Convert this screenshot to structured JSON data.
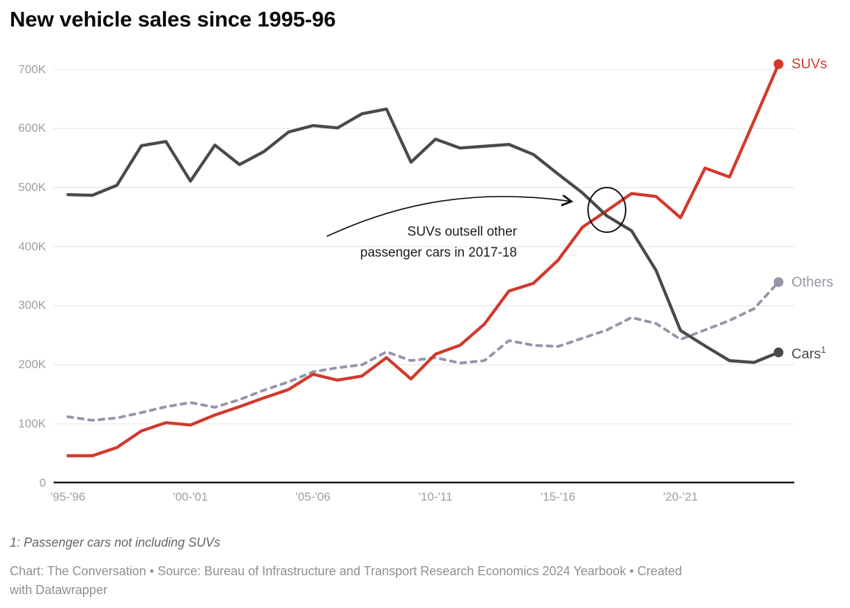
{
  "title": "New vehicle sales since 1995-96",
  "footnote": "1: Passenger cars not including SUVs",
  "credit_line1": "Chart: The Conversation • Source: Bureau of Infrastructure and Transport Research Economics 2024 Yearbook • Created",
  "credit_line2": "with Datawrapper",
  "annotation": {
    "line1": "SUVs outsell other",
    "line2": "passenger cars in 2017-18",
    "circled_event": "SUV line crosses above Cars line at 2017-18"
  },
  "colors": {
    "suvs": "#d2392c",
    "cars": "#4a4a4a",
    "others": "#9795a7",
    "grid": "#e8e8e8",
    "axis_baseline": "#171717",
    "axis_text": "#9e9e9e",
    "annotation_ink": "#111111",
    "title_text": "#0a0a0a"
  },
  "chart_data": {
    "type": "line",
    "title": "New vehicle sales since 1995-96",
    "xlabel": "",
    "ylabel": "",
    "y_unit": "vehicles (thousands)",
    "ylim_k": [
      0,
      700
    ],
    "grid": "horizontal",
    "legend_position": "line-end-labels",
    "years": [
      "1995-96",
      "1996-97",
      "1997-98",
      "1998-99",
      "1999-00",
      "2000-01",
      "2001-02",
      "2002-03",
      "2003-04",
      "2004-05",
      "2005-06",
      "2006-07",
      "2007-08",
      "2008-09",
      "2009-10",
      "2010-11",
      "2011-12",
      "2012-13",
      "2013-14",
      "2014-15",
      "2015-16",
      "2016-17",
      "2017-18",
      "2018-19",
      "2019-20",
      "2020-21",
      "2021-22",
      "2022-23",
      "2023-24",
      "2024-25"
    ],
    "y_ticks": [
      {
        "label": "700K",
        "value_k": 700
      },
      {
        "label": "600K",
        "value_k": 600
      },
      {
        "label": "500K",
        "value_k": 500
      },
      {
        "label": "400K",
        "value_k": 400
      },
      {
        "label": "300K",
        "value_k": 300
      },
      {
        "label": "200K",
        "value_k": 200
      },
      {
        "label": "100K",
        "value_k": 100
      },
      {
        "label": "0",
        "value_k": 0
      }
    ],
    "x_ticks": [
      {
        "label": "'95-'96",
        "index": 0
      },
      {
        "label": "'00-'01",
        "index": 5
      },
      {
        "label": "'05-'06",
        "index": 10
      },
      {
        "label": "'10-'11",
        "index": 15
      },
      {
        "label": "'15-'16",
        "index": 20
      },
      {
        "label": "'20-'21",
        "index": 25
      }
    ],
    "series": [
      {
        "name": "others",
        "end_label": "Others",
        "style": "dashed",
        "color": "#9795a7",
        "values_k": [
          112,
          106,
          110,
          119,
          129,
          136,
          128,
          141,
          157,
          171,
          188,
          195,
          200,
          222,
          207,
          212,
          203,
          207,
          241,
          233,
          231,
          245,
          259,
          280,
          270,
          243,
          259,
          275,
          295,
          340
        ]
      },
      {
        "name": "suvs",
        "end_label": "SUVs",
        "style": "solid",
        "color": "#d2392c",
        "values_k": [
          46,
          46,
          60,
          88,
          102,
          98,
          115,
          129,
          144,
          158,
          184,
          174,
          181,
          212,
          176,
          218,
          233,
          269,
          325,
          338,
          377,
          433,
          461,
          490,
          485,
          449,
          533,
          518,
          613,
          709
        ]
      },
      {
        "name": "cars",
        "end_label": "Cars",
        "end_label_footnote_marker": "1",
        "style": "solid",
        "color": "#4a4a4a",
        "values_k": [
          488,
          487,
          504,
          571,
          578,
          511,
          572,
          539,
          561,
          594,
          605,
          601,
          625,
          633,
          543,
          582,
          567,
          570,
          573,
          556,
          523,
          491,
          452,
          427,
          360,
          258,
          232,
          207,
          204,
          221
        ]
      }
    ]
  }
}
